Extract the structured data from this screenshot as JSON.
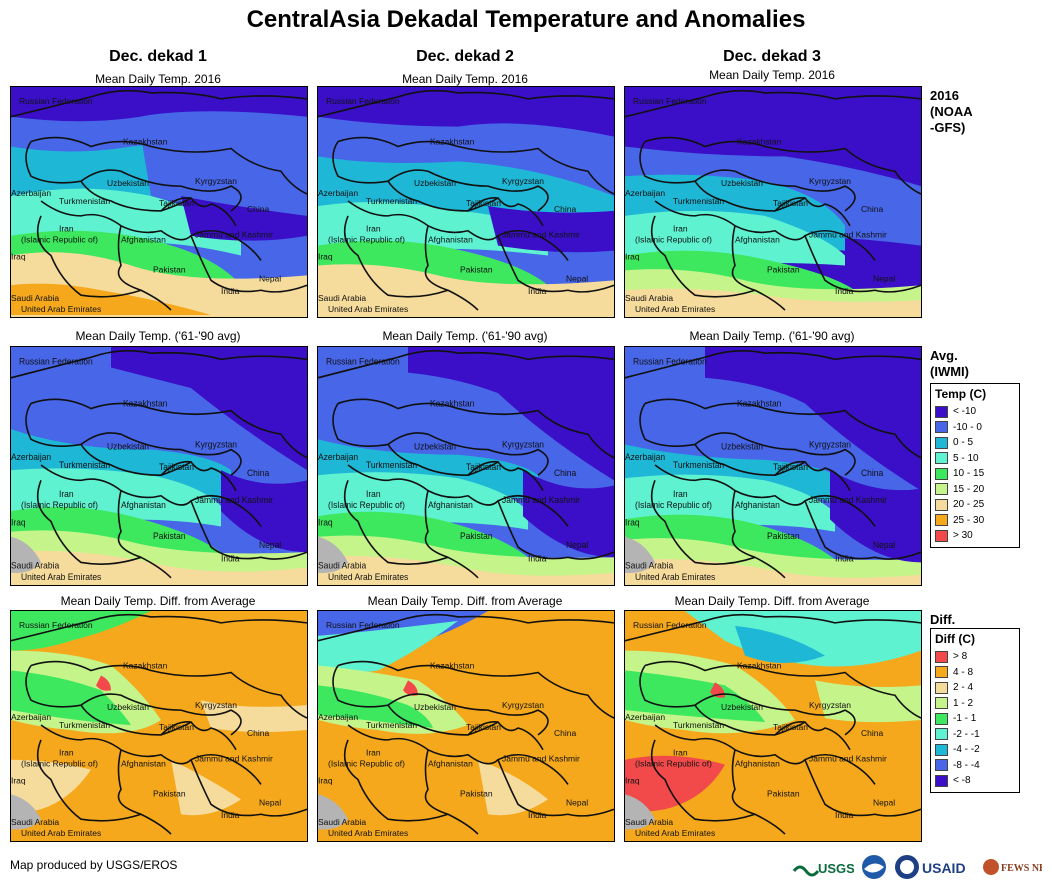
{
  "title": "CentralAsia Dekadal Temperature and Anomalies",
  "columns": [
    "Dec. dekad 1",
    "Dec. dekad 2",
    "Dec. dekad 3"
  ],
  "row_titles": {
    "r1": "Mean Daily Temp. 2016",
    "r2": "Mean Daily Temp. ('61-'90 avg)",
    "r3": "Mean Daily Temp. Diff. from Average"
  },
  "row_labels": {
    "r1": [
      "2016",
      "(NOAA",
      "-GFS)"
    ],
    "r2": [
      "Avg.",
      "(IWMI)"
    ],
    "r3": [
      "Diff."
    ]
  },
  "map_labels": {
    "russia": "Russian Federation",
    "kazakhstan": "Kazakhstan",
    "uzbekistan": "Uzbekistan",
    "kyrgyzstan": "Kyrgyzstan",
    "turkmenistan": "Turkmenistan",
    "azerbaijan": "Azerbaijan",
    "tajikistan": "Tajikistan",
    "china": "China",
    "iran1": "Iran",
    "iran2": "(Islamic Republic of)",
    "afghanistan": "Afghanistan",
    "jammu": "Jammu and Kashmir",
    "iraq": "Iraq",
    "pakistan": "Pakistan",
    "nepal": "Nepal",
    "india": "India",
    "saudi": "Saudi Arabia",
    "uae": "United Arab Emirates"
  },
  "legend_temp": {
    "title": "Temp (C)",
    "items": [
      {
        "label": "< -10",
        "color": "#3a0fc7"
      },
      {
        "label": "-10 - 0",
        "color": "#4766e8"
      },
      {
        "label": "0 - 5",
        "color": "#1fb7d6"
      },
      {
        "label": "5 - 10",
        "color": "#5ef2d0"
      },
      {
        "label": "10 - 15",
        "color": "#3ee85e"
      },
      {
        "label": "15 - 20",
        "color": "#c5f58a"
      },
      {
        "label": "20 - 25",
        "color": "#f6dc9c"
      },
      {
        "label": "25 - 30",
        "color": "#f5a81c"
      },
      {
        "label": "> 30",
        "color": "#f24a4a"
      }
    ]
  },
  "legend_diff": {
    "title": "Diff (C)",
    "items": [
      {
        "label": "> 8",
        "color": "#f24a4a"
      },
      {
        "label": "4 - 8",
        "color": "#f5a81c"
      },
      {
        "label": "2 - 4",
        "color": "#f6dc9c"
      },
      {
        "label": "1 - 2",
        "color": "#c5f58a"
      },
      {
        "label": "-1 - 1",
        "color": "#3ee85e"
      },
      {
        "label": "-2 - -1",
        "color": "#5ef2d0"
      },
      {
        "label": "-4 - -2",
        "color": "#1fb7d6"
      },
      {
        "label": "-8 - -4",
        "color": "#4766e8"
      },
      {
        "label": "< -8",
        "color": "#3a0fc7"
      }
    ]
  },
  "footer": "Map produced by USGS/EROS",
  "logos": {
    "usgs": "USGS",
    "usaid": "USAID",
    "fewsnet": "FEWS NET"
  }
}
